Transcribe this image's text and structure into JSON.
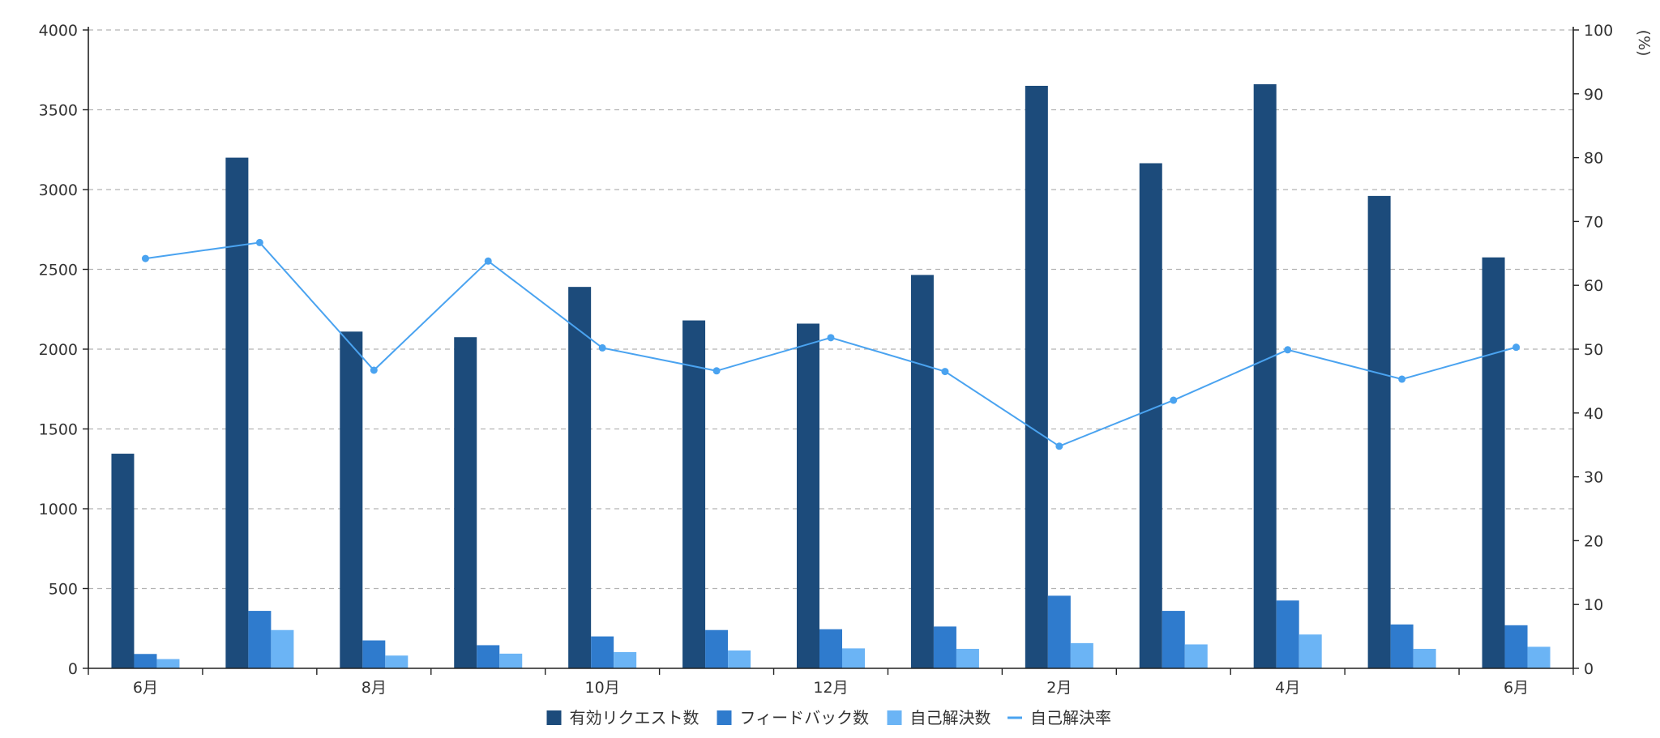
{
  "chart_data": {
    "type": "bar",
    "x_tick_labels": [
      "6月",
      "",
      "8月",
      "",
      "10月",
      "",
      "12月",
      "",
      "2月",
      "",
      "4月",
      "",
      "6月"
    ],
    "y_left": {
      "ylim": [
        0,
        4000
      ],
      "ticks": [
        0,
        500,
        1000,
        1500,
        2000,
        2500,
        3000,
        3500,
        4000
      ]
    },
    "y_right": {
      "unit_label": "(%)",
      "ylim": [
        0,
        100
      ],
      "ticks": [
        0,
        10,
        20,
        30,
        40,
        50,
        60,
        70,
        80,
        90,
        100
      ]
    },
    "grid": "horizontal dashed",
    "legend_position": "bottom-center",
    "series": [
      {
        "name": "有効リクエスト数",
        "kind": "bar",
        "axis": "left",
        "color": "#1c4b7b",
        "values": [
          1345,
          3200,
          2110,
          2075,
          2390,
          2180,
          2160,
          2465,
          3650,
          3165,
          3660,
          2960,
          2575
        ]
      },
      {
        "name": "フィードバック数",
        "kind": "bar",
        "axis": "left",
        "color": "#2f7bcd",
        "values": [
          90,
          360,
          175,
          145,
          200,
          240,
          245,
          262,
          455,
          360,
          425,
          275,
          270
        ]
      },
      {
        "name": "自己解決数",
        "kind": "bar",
        "axis": "left",
        "color": "#6bb4f5",
        "values": [
          58,
          240,
          80,
          92,
          102,
          112,
          125,
          122,
          158,
          150,
          212,
          122,
          135
        ]
      },
      {
        "name": "自己解決率",
        "kind": "line",
        "axis": "right",
        "color": "#4aa3f0",
        "values": [
          64.2,
          66.7,
          46.7,
          63.8,
          50.2,
          46.6,
          51.8,
          46.5,
          34.8,
          42.0,
          49.9,
          45.3,
          50.3
        ]
      }
    ]
  }
}
